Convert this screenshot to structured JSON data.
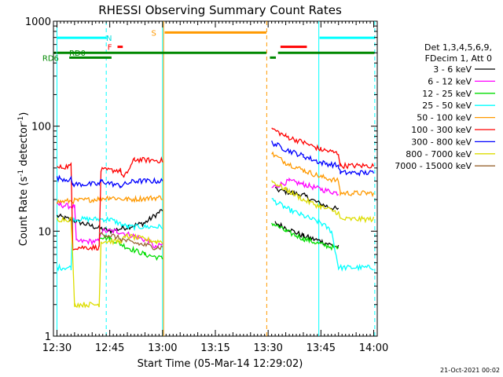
{
  "chart_data": {
    "type": "line",
    "title": "RHESSI Observing Summary Count Rates",
    "xlabel": "Start Time (05-Mar-14 12:29:02)",
    "ylabel_main": "Count Rate (s",
    "ylabel_sup1": "-1",
    "ylabel_mid": " detector",
    "ylabel_sup2": "-1",
    "ylabel_end": ")",
    "x_range_min": [
      -1,
      91
    ],
    "y_range_log": [
      1,
      1000
    ],
    "x_ticks": [
      {
        "label": "12:30",
        "t": 0
      },
      {
        "label": "12:45",
        "t": 15
      },
      {
        "label": "13:00",
        "t": 30
      },
      {
        "label": "13:15",
        "t": 45
      },
      {
        "label": "13:30",
        "t": 60
      },
      {
        "label": "13:45",
        "t": 75
      },
      {
        "label": "14:00",
        "t": 90
      }
    ],
    "y_ticks": [
      {
        "label": "1",
        "v": 1
      },
      {
        "label": "10",
        "v": 10
      },
      {
        "label": "100",
        "v": 100
      },
      {
        "label": "1000",
        "v": 1000
      }
    ],
    "legend_header": [
      "Det 1,3,4,5,6,9,",
      "FDecim 1, Att 0"
    ],
    "footer_date": "21-Oct-2021 00:02",
    "series": [
      {
        "name": "3 - 6 keV",
        "color": "#000000",
        "segments": [
          [
            [
              0,
              14
            ],
            [
              15,
              10
            ],
            [
              25,
              12
            ],
            [
              30,
              16
            ]
          ],
          [
            [
              62,
              25
            ],
            [
              70,
              22
            ],
            [
              75,
              18
            ],
            [
              80,
              16
            ]
          ],
          [
            [
              62,
              12
            ],
            [
              70,
              9
            ],
            [
              75,
              8
            ],
            [
              80,
              7
            ]
          ]
        ]
      },
      {
        "name": "6 - 12 keV",
        "color": "#ff00ff",
        "segments": [
          [
            [
              0,
              18
            ],
            [
              5,
              17
            ],
            [
              5.5,
              8
            ],
            [
              12,
              8
            ],
            [
              12.5,
              10
            ],
            [
              17,
              10
            ],
            [
              22,
              9
            ],
            [
              26,
              8
            ],
            [
              28,
              7
            ],
            [
              30,
              7.5
            ]
          ],
          [
            [
              61,
              26
            ],
            [
              66,
              30
            ],
            [
              70,
              28
            ],
            [
              75,
              25
            ],
            [
              80,
              23
            ]
          ]
        ]
      },
      {
        "name": "12 - 25 keV",
        "color": "#00dd00",
        "segments": [
          [
            [
              12,
              9
            ],
            [
              15,
              8.5
            ],
            [
              20,
              7
            ],
            [
              25,
              6
            ],
            [
              30,
              5.5
            ]
          ],
          [
            [
              61,
              12
            ],
            [
              65,
              10
            ],
            [
              70,
              8.5
            ],
            [
              75,
              7.5
            ],
            [
              80,
              6.8
            ]
          ]
        ]
      },
      {
        "name": "25 - 50 keV",
        "color": "#00ffff",
        "segments": [
          [
            [
              0,
              4.5
            ],
            [
              4,
              4.5
            ],
            [
              4.5,
              13
            ],
            [
              15,
              13
            ],
            [
              20,
              11
            ],
            [
              30,
              11
            ]
          ],
          [
            [
              61,
              20
            ],
            [
              66,
              16
            ],
            [
              70,
              14
            ],
            [
              75,
              12
            ],
            [
              78,
              10
            ],
            [
              80,
              4.5
            ],
            [
              90,
              4.5
            ]
          ]
        ]
      },
      {
        "name": "50 - 100 keV",
        "color": "#ff9900",
        "segments": [
          [
            [
              0,
              19
            ],
            [
              10,
              20
            ],
            [
              15,
              21
            ],
            [
              20,
              20
            ],
            [
              30,
              21
            ]
          ],
          [
            [
              61,
              55
            ],
            [
              65,
              45
            ],
            [
              70,
              38
            ],
            [
              75,
              33
            ],
            [
              80,
              30
            ],
            [
              80.5,
              23
            ],
            [
              90,
              23
            ]
          ]
        ]
      },
      {
        "name": "100 - 300 keV",
        "color": "#ff0000",
        "segments": [
          [
            [
              0,
              40
            ],
            [
              4,
              42
            ],
            [
              4.5,
              7
            ],
            [
              12,
              7
            ],
            [
              12.5,
              38
            ],
            [
              18,
              38
            ],
            [
              19,
              32
            ],
            [
              22,
              48
            ],
            [
              30,
              47
            ]
          ],
          [
            [
              61,
              95
            ],
            [
              65,
              80
            ],
            [
              70,
              70
            ],
            [
              75,
              60
            ],
            [
              80,
              55
            ],
            [
              80.5,
              42
            ],
            [
              90,
              42
            ]
          ]
        ]
      },
      {
        "name": "300 - 800 keV",
        "color": "#0000ff",
        "segments": [
          [
            [
              0,
              32
            ],
            [
              4,
              31
            ],
            [
              4.5,
              28
            ],
            [
              12,
              28
            ],
            [
              12.5,
              30
            ],
            [
              18,
              27
            ],
            [
              22,
              30
            ],
            [
              30,
              30
            ]
          ],
          [
            [
              61,
              70
            ],
            [
              65,
              60
            ],
            [
              70,
              52
            ],
            [
              75,
              45
            ],
            [
              80,
              42
            ],
            [
              80.5,
              36
            ],
            [
              90,
              36
            ]
          ]
        ]
      },
      {
        "name": "800 - 7000 keV",
        "color": "#dddd00",
        "segments": [
          [
            [
              0,
              13
            ],
            [
              4,
              13
            ],
            [
              5,
              2
            ],
            [
              12,
              2
            ],
            [
              12.5,
              8
            ],
            [
              18,
              8
            ],
            [
              20,
              9
            ],
            [
              28,
              8
            ],
            [
              30,
              8
            ]
          ],
          [
            [
              61,
              30
            ],
            [
              65,
              25
            ],
            [
              70,
              20
            ],
            [
              75,
              17
            ],
            [
              80,
              15
            ],
            [
              80.5,
              13
            ],
            [
              90,
              13
            ]
          ]
        ]
      },
      {
        "name": "7000 - 15000 keV",
        "color": "#996633",
        "segments": [
          [
            [
              12,
              9.5
            ],
            [
              16,
              9
            ],
            [
              20,
              8
            ],
            [
              24,
              7.5
            ],
            [
              28,
              7
            ],
            [
              30,
              7
            ]
          ]
        ]
      }
    ],
    "vlines": [
      {
        "t": 0,
        "color": "#00ffff",
        "dash": false
      },
      {
        "t": 14,
        "color": "#00ffff",
        "dash": true
      },
      {
        "t": 30,
        "color": "#00ffff",
        "dash": false
      },
      {
        "t": 30.3,
        "color": "#ff9900",
        "dash": false
      },
      {
        "t": 59.6,
        "color": "#ff9900",
        "dash": true
      },
      {
        "t": 74.4,
        "color": "#00ffff",
        "dash": false
      },
      {
        "t": 90.3,
        "color": "#00ffff",
        "dash": true
      }
    ],
    "flags": [
      {
        "label": "",
        "color": "#00ffff",
        "y": 695,
        "t1": 0,
        "t2": 14
      },
      {
        "label": "N",
        "color": "#00ffff",
        "y": 695,
        "t1": 14,
        "t2": 14,
        "label_at": 14.8
      },
      {
        "label": "",
        "color": "#00ffff",
        "y": 695,
        "t1": 74.6,
        "t2": 90.2
      },
      {
        "label": "S",
        "color": "#ff9900",
        "y": 780,
        "t1": 30.6,
        "t2": 59.5,
        "label_at": 27.5
      },
      {
        "label": "F",
        "color": "#ff0000",
        "y": 570,
        "t1": 17.2,
        "t2": 18.7,
        "label_at": 15
      },
      {
        "label": "",
        "color": "#ff0000",
        "y": 570,
        "t1": 63.5,
        "t2": 71
      },
      {
        "label": "RD0",
        "color": "#008800",
        "y": 500,
        "t1": 0,
        "t2": 59.5,
        "label_at": 5.8
      },
      {
        "label": "",
        "color": "#008800",
        "y": 500,
        "t1": 62.8,
        "t2": 90.2
      },
      {
        "label": "",
        "color": "#008800",
        "y": 500,
        "t1": -1,
        "t2": -0.2
      },
      {
        "label": "",
        "color": "#008800",
        "y": 450,
        "t1": 60.5,
        "t2": 62.2
      },
      {
        "label": "RD6",
        "color": "#008800",
        "y": 450,
        "t1": 3.5,
        "t2": 15.5,
        "label_at": -1.8
      }
    ]
  }
}
